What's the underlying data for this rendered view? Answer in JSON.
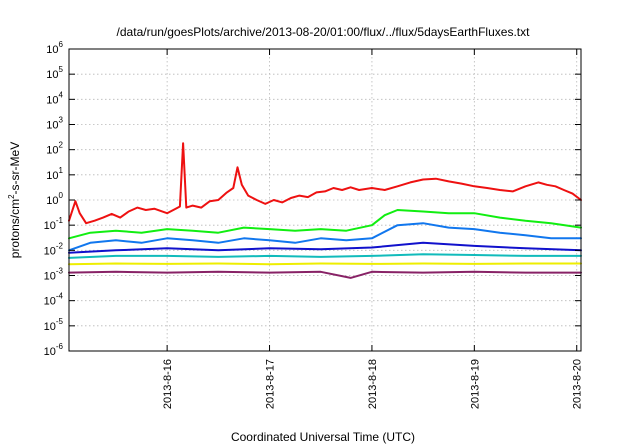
{
  "chart_data": {
    "type": "line",
    "title": "/data/run/goesPlots/archive/2013-08-20/01:00/flux/../flux/5daysEarthFluxes.txt",
    "xlabel": "Coordinated Universal Time (UTC)",
    "ylabel": {
      "prefix": "protons/cm",
      "sup": "2",
      "suffix": "-s-sr-MeV"
    },
    "yscale": "log",
    "ylim": [
      1e-06,
      1000000.0
    ],
    "xlim": [
      "2013-08-15 01:00",
      "2013-08-20 01:00"
    ],
    "grid": true,
    "y_ticks": [
      {
        "base": "10",
        "exp": "-6",
        "value": 1e-06
      },
      {
        "base": "10",
        "exp": "-5",
        "value": 1e-05
      },
      {
        "base": "10",
        "exp": "-4",
        "value": 0.0001
      },
      {
        "base": "10",
        "exp": "-3",
        "value": 0.001
      },
      {
        "base": "10",
        "exp": "-2",
        "value": 0.01
      },
      {
        "base": "10",
        "exp": "-1",
        "value": 0.1
      },
      {
        "base": "10",
        "exp": "0",
        "value": 1
      },
      {
        "base": "10",
        "exp": "1",
        "value": 10
      },
      {
        "base": "10",
        "exp": "2",
        "value": 100
      },
      {
        "base": "10",
        "exp": "3",
        "value": 1000.0
      },
      {
        "base": "10",
        "exp": "4",
        "value": 10000.0
      },
      {
        "base": "10",
        "exp": "5",
        "value": 100000.0
      },
      {
        "base": "10",
        "exp": "6",
        "value": 1000000.0
      }
    ],
    "x_ticks": [
      {
        "label": "2013-8-16",
        "time": "2013-08-16 00:00"
      },
      {
        "label": "2013-8-17",
        "time": "2013-08-17 00:00"
      },
      {
        "label": "2013-8-18",
        "time": "2013-08-18 00:00"
      },
      {
        "label": "2013-8-19",
        "time": "2013-08-19 00:00"
      },
      {
        "label": "2013-8-20",
        "time": "2013-08-20 00:00"
      }
    ],
    "series": [
      {
        "color": "#ee1111",
        "points": [
          [
            "2013-08-15 01:00",
            0.15
          ],
          [
            "2013-08-15 02:30",
            0.9
          ],
          [
            "2013-08-15 03:30",
            0.3
          ],
          [
            "2013-08-15 05:00",
            0.12
          ],
          [
            "2013-08-15 07:00",
            0.15
          ],
          [
            "2013-08-15 09:00",
            0.2
          ],
          [
            "2013-08-15 11:00",
            0.28
          ],
          [
            "2013-08-15 13:00",
            0.2
          ],
          [
            "2013-08-15 15:00",
            0.35
          ],
          [
            "2013-08-15 17:00",
            0.5
          ],
          [
            "2013-08-15 19:00",
            0.4
          ],
          [
            "2013-08-15 21:00",
            0.45
          ],
          [
            "2013-08-16 00:00",
            0.3
          ],
          [
            "2013-08-16 02:00",
            0.45
          ],
          [
            "2013-08-16 03:00",
            0.55
          ],
          [
            "2013-08-16 03:45",
            180
          ],
          [
            "2013-08-16 04:30",
            0.5
          ],
          [
            "2013-08-16 06:00",
            0.6
          ],
          [
            "2013-08-16 08:00",
            0.5
          ],
          [
            "2013-08-16 10:00",
            0.9
          ],
          [
            "2013-08-16 12:00",
            1.0
          ],
          [
            "2013-08-16 14:00",
            2.0
          ],
          [
            "2013-08-16 15:30",
            3.0
          ],
          [
            "2013-08-16 16:30",
            20
          ],
          [
            "2013-08-16 17:30",
            4.0
          ],
          [
            "2013-08-16 19:00",
            1.5
          ],
          [
            "2013-08-16 21:00",
            1.0
          ],
          [
            "2013-08-16 23:00",
            0.7
          ],
          [
            "2013-08-17 01:00",
            1.0
          ],
          [
            "2013-08-17 03:00",
            0.8
          ],
          [
            "2013-08-17 05:00",
            1.2
          ],
          [
            "2013-08-17 07:00",
            1.5
          ],
          [
            "2013-08-17 09:00",
            1.3
          ],
          [
            "2013-08-17 11:00",
            2.0
          ],
          [
            "2013-08-17 13:00",
            2.2
          ],
          [
            "2013-08-17 15:00",
            3.0
          ],
          [
            "2013-08-17 17:00",
            2.5
          ],
          [
            "2013-08-17 19:00",
            3.2
          ],
          [
            "2013-08-17 21:00",
            2.5
          ],
          [
            "2013-08-18 00:00",
            3.0
          ],
          [
            "2013-08-18 03:00",
            2.5
          ],
          [
            "2013-08-18 06:00",
            3.5
          ],
          [
            "2013-08-18 09:00",
            5.0
          ],
          [
            "2013-08-18 12:00",
            6.5
          ],
          [
            "2013-08-18 15:00",
            7.0
          ],
          [
            "2013-08-18 18:00",
            5.5
          ],
          [
            "2013-08-18 21:00",
            4.5
          ],
          [
            "2013-08-19 00:00",
            3.5
          ],
          [
            "2013-08-19 03:00",
            3.0
          ],
          [
            "2013-08-19 06:00",
            2.5
          ],
          [
            "2013-08-19 09:00",
            2.2
          ],
          [
            "2013-08-19 12:00",
            3.5
          ],
          [
            "2013-08-19 15:00",
            5.0
          ],
          [
            "2013-08-19 17:00",
            4.0
          ],
          [
            "2013-08-19 19:00",
            3.5
          ],
          [
            "2013-08-19 21:00",
            2.5
          ],
          [
            "2013-08-19 23:00",
            1.8
          ],
          [
            "2013-08-20 01:00",
            1.0
          ]
        ]
      },
      {
        "color": "#11ee11",
        "points": [
          [
            "2013-08-15 01:00",
            0.03
          ],
          [
            "2013-08-15 06:00",
            0.05
          ],
          [
            "2013-08-15 12:00",
            0.06
          ],
          [
            "2013-08-15 18:00",
            0.05
          ],
          [
            "2013-08-16 00:00",
            0.07
          ],
          [
            "2013-08-16 06:00",
            0.06
          ],
          [
            "2013-08-16 12:00",
            0.05
          ],
          [
            "2013-08-16 18:00",
            0.08
          ],
          [
            "2013-08-17 00:00",
            0.07
          ],
          [
            "2013-08-17 06:00",
            0.06
          ],
          [
            "2013-08-17 12:00",
            0.07
          ],
          [
            "2013-08-17 18:00",
            0.06
          ],
          [
            "2013-08-18 00:00",
            0.1
          ],
          [
            "2013-08-18 03:00",
            0.25
          ],
          [
            "2013-08-18 06:00",
            0.4
          ],
          [
            "2013-08-18 12:00",
            0.35
          ],
          [
            "2013-08-18 18:00",
            0.3
          ],
          [
            "2013-08-19 00:00",
            0.3
          ],
          [
            "2013-08-19 06:00",
            0.2
          ],
          [
            "2013-08-19 12:00",
            0.15
          ],
          [
            "2013-08-19 18:00",
            0.12
          ],
          [
            "2013-08-20 01:00",
            0.08
          ]
        ]
      },
      {
        "color": "#1177ee",
        "points": [
          [
            "2013-08-15 01:00",
            0.01
          ],
          [
            "2013-08-15 06:00",
            0.02
          ],
          [
            "2013-08-15 12:00",
            0.025
          ],
          [
            "2013-08-15 18:00",
            0.02
          ],
          [
            "2013-08-16 00:00",
            0.03
          ],
          [
            "2013-08-16 06:00",
            0.025
          ],
          [
            "2013-08-16 12:00",
            0.02
          ],
          [
            "2013-08-16 18:00",
            0.03
          ],
          [
            "2013-08-17 00:00",
            0.025
          ],
          [
            "2013-08-17 06:00",
            0.02
          ],
          [
            "2013-08-17 12:00",
            0.03
          ],
          [
            "2013-08-17 18:00",
            0.025
          ],
          [
            "2013-08-18 00:00",
            0.03
          ],
          [
            "2013-08-18 06:00",
            0.1
          ],
          [
            "2013-08-18 12:00",
            0.12
          ],
          [
            "2013-08-18 18:00",
            0.08
          ],
          [
            "2013-08-19 00:00",
            0.07
          ],
          [
            "2013-08-19 06:00",
            0.05
          ],
          [
            "2013-08-19 12:00",
            0.04
          ],
          [
            "2013-08-19 18:00",
            0.03
          ],
          [
            "2013-08-20 01:00",
            0.03
          ]
        ]
      },
      {
        "color": "#1111cc",
        "points": [
          [
            "2013-08-15 01:00",
            0.008
          ],
          [
            "2013-08-15 12:00",
            0.01
          ],
          [
            "2013-08-16 00:00",
            0.012
          ],
          [
            "2013-08-16 12:00",
            0.01
          ],
          [
            "2013-08-17 00:00",
            0.012
          ],
          [
            "2013-08-17 12:00",
            0.011
          ],
          [
            "2013-08-18 00:00",
            0.013
          ],
          [
            "2013-08-18 12:00",
            0.02
          ],
          [
            "2013-08-19 00:00",
            0.015
          ],
          [
            "2013-08-19 12:00",
            0.012
          ],
          [
            "2013-08-20 01:00",
            0.01
          ]
        ]
      },
      {
        "color": "#11bbbb",
        "points": [
          [
            "2013-08-15 01:00",
            0.005
          ],
          [
            "2013-08-15 12:00",
            0.006
          ],
          [
            "2013-08-16 00:00",
            0.006
          ],
          [
            "2013-08-16 12:00",
            0.0055
          ],
          [
            "2013-08-17 00:00",
            0.006
          ],
          [
            "2013-08-17 12:00",
            0.0055
          ],
          [
            "2013-08-18 00:00",
            0.006
          ],
          [
            "2013-08-18 12:00",
            0.007
          ],
          [
            "2013-08-19 00:00",
            0.0065
          ],
          [
            "2013-08-19 12:00",
            0.006
          ],
          [
            "2013-08-20 01:00",
            0.006
          ]
        ]
      },
      {
        "color": "#eeee00",
        "points": [
          [
            "2013-08-15 01:00",
            0.0028
          ],
          [
            "2013-08-15 12:00",
            0.003
          ],
          [
            "2013-08-16 00:00",
            0.0029
          ],
          [
            "2013-08-16 12:00",
            0.003
          ],
          [
            "2013-08-17 00:00",
            0.0028
          ],
          [
            "2013-08-17 12:00",
            0.003
          ],
          [
            "2013-08-18 00:00",
            0.0029
          ],
          [
            "2013-08-18 12:00",
            0.003
          ],
          [
            "2013-08-19 00:00",
            0.0029
          ],
          [
            "2013-08-19 12:00",
            0.003
          ],
          [
            "2013-08-20 01:00",
            0.003
          ]
        ]
      },
      {
        "color": "#882266",
        "points": [
          [
            "2013-08-15 01:00",
            0.0013
          ],
          [
            "2013-08-15 12:00",
            0.0014
          ],
          [
            "2013-08-16 00:00",
            0.0013
          ],
          [
            "2013-08-16 12:00",
            0.0014
          ],
          [
            "2013-08-17 00:00",
            0.0013
          ],
          [
            "2013-08-17 12:00",
            0.0014
          ],
          [
            "2013-08-17 19:00",
            0.0008
          ],
          [
            "2013-08-18 00:00",
            0.0014
          ],
          [
            "2013-08-18 12:00",
            0.0013
          ],
          [
            "2013-08-19 00:00",
            0.0014
          ],
          [
            "2013-08-19 12:00",
            0.0013
          ],
          [
            "2013-08-20 01:00",
            0.0013
          ]
        ]
      }
    ]
  }
}
